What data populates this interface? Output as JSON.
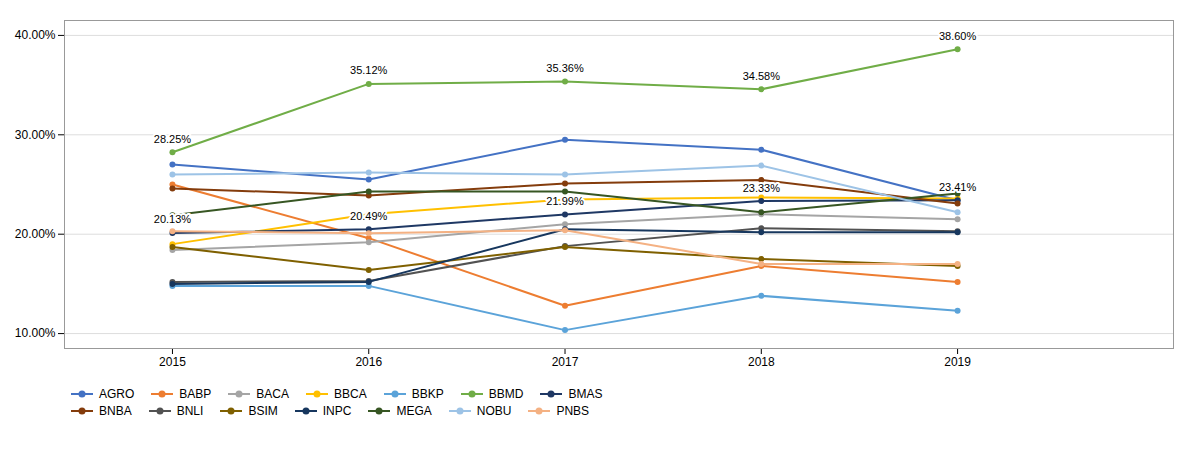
{
  "chart_data": {
    "type": "line",
    "x": [
      2015,
      2016,
      2017,
      2018,
      2019
    ],
    "series": [
      {
        "name": "AGRO",
        "color": "#4472C4",
        "values": [
          0.27,
          0.255,
          0.295,
          0.285,
          0.2341
        ]
      },
      {
        "name": "BABP",
        "color": "#ED7D31",
        "values": [
          0.25,
          0.196,
          0.128,
          0.168,
          0.152
        ]
      },
      {
        "name": "BACA",
        "color": "#A5A5A5",
        "values": [
          0.184,
          0.192,
          0.21,
          0.22,
          0.215
        ]
      },
      {
        "name": "BBCA",
        "color": "#FFC000",
        "values": [
          0.19,
          0.22,
          0.235,
          0.237,
          0.236
        ]
      },
      {
        "name": "BBKP",
        "color": "#5BA3D9",
        "values": [
          0.148,
          0.148,
          0.1035,
          0.138,
          0.123
        ]
      },
      {
        "name": "BBMD",
        "color": "#70AD47",
        "values": [
          0.2825,
          0.3512,
          0.3536,
          0.3458,
          0.386
        ]
      },
      {
        "name": "BMAS",
        "color": "#1F3864",
        "values": [
          0.2013,
          0.2049,
          0.2199,
          0.2333,
          0.2341
        ]
      },
      {
        "name": "BNBA",
        "color": "#843C0C",
        "values": [
          0.246,
          0.239,
          0.251,
          0.2545,
          0.231
        ]
      },
      {
        "name": "BNLI",
        "color": "#525252",
        "values": [
          0.152,
          0.153,
          0.188,
          0.206,
          0.203
        ]
      },
      {
        "name": "BSIM",
        "color": "#7F6000",
        "values": [
          0.187,
          0.164,
          0.187,
          0.175,
          0.168
        ]
      },
      {
        "name": "INPC",
        "color": "#17375E",
        "values": [
          0.15,
          0.152,
          0.205,
          0.202,
          0.202
        ]
      },
      {
        "name": "MEGA",
        "color": "#375623",
        "values": [
          0.219,
          0.243,
          0.243,
          0.222,
          0.241
        ]
      },
      {
        "name": "NOBU",
        "color": "#9DC3E6",
        "values": [
          0.26,
          0.262,
          0.26,
          0.269,
          0.222
        ]
      },
      {
        "name": "PNBS",
        "color": "#F4B183",
        "values": [
          0.203,
          0.201,
          0.204,
          0.17,
          0.17
        ]
      }
    ],
    "annotations": [
      {
        "text": "28.25%",
        "x": 2015,
        "y": 0.2825
      },
      {
        "text": "20.13%",
        "x": 2015,
        "y": 0.2013
      },
      {
        "text": "35.12%",
        "x": 2016,
        "y": 0.3512
      },
      {
        "text": "20.49%",
        "x": 2016,
        "y": 0.2049
      },
      {
        "text": "35.36%",
        "x": 2017,
        "y": 0.3536
      },
      {
        "text": "21.99%",
        "x": 2017,
        "y": 0.2199
      },
      {
        "text": "34.58%",
        "x": 2018,
        "y": 0.3458
      },
      {
        "text": "23.33%",
        "x": 2018,
        "y": 0.2333
      },
      {
        "text": "38.60%",
        "x": 2019,
        "y": 0.386
      },
      {
        "text": "23.41%",
        "x": 2019,
        "y": 0.2341
      }
    ],
    "xlim": [
      2014.45,
      2020.1
    ],
    "xticks": [
      2015,
      2016,
      2017,
      2018,
      2019
    ],
    "ylim": [
      0.085,
      0.415
    ],
    "yticks": [
      {
        "value": 0.1,
        "label": "10.00%"
      },
      {
        "value": 0.2,
        "label": "20.00%"
      },
      {
        "value": 0.3,
        "label": "30.00%"
      },
      {
        "value": 0.4,
        "label": "40.00%"
      }
    ],
    "grid": "y",
    "legend": "bottom",
    "marker": "circle"
  }
}
